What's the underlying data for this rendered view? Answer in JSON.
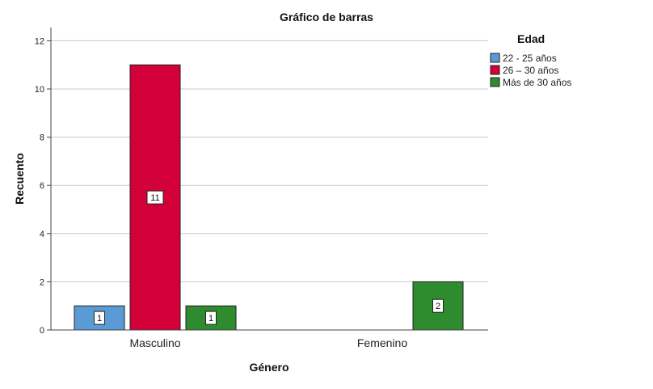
{
  "chart_data": {
    "type": "bar",
    "title": "Gráfico de barras",
    "xlabel": "Género",
    "ylabel": "Recuento",
    "categories": [
      "Masculino",
      "Femenino"
    ],
    "series": [
      {
        "name": "22 - 25 años",
        "color": "#5b9bd5",
        "values": [
          1,
          0
        ],
        "labels": [
          "1",
          ""
        ]
      },
      {
        "name": "26 – 30 años",
        "color": "#d4003a",
        "values": [
          11,
          0
        ],
        "labels": [
          "11",
          ""
        ]
      },
      {
        "name": "Más de 30 años",
        "color": "#2e8b2e",
        "values": [
          1,
          2
        ],
        "labels": [
          "1",
          "2"
        ]
      }
    ],
    "ylim": [
      0,
      12.5
    ],
    "yticks": [
      0,
      2,
      4,
      6,
      8,
      10,
      12
    ],
    "grid": true,
    "legend": {
      "title": "Edad",
      "placement": "right"
    }
  }
}
